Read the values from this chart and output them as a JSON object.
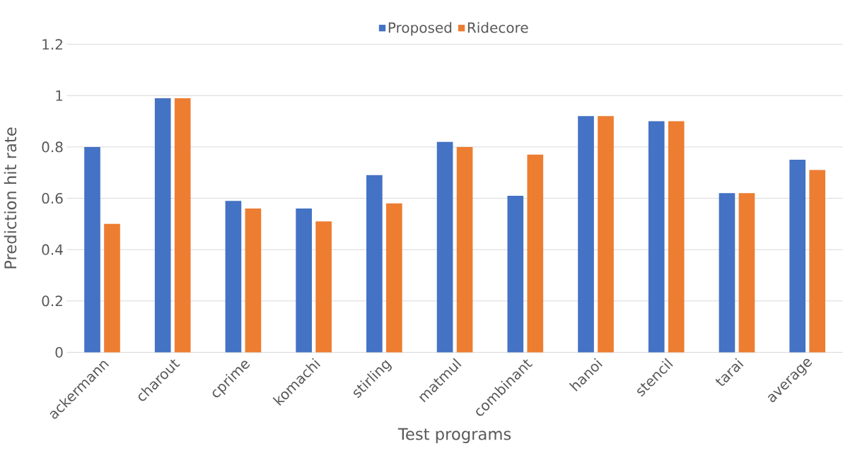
{
  "chart_data": {
    "type": "bar",
    "xlabel": "Test programs",
    "ylabel": "Prediction hit rate",
    "categories": [
      "ackermann",
      "charout",
      "cprime",
      "komachi",
      "stirling",
      "matmul",
      "combinant",
      "hanoi",
      "stencil",
      "tarai",
      "average"
    ],
    "series": [
      {
        "name": "Proposed",
        "color": "#4472c4",
        "values": [
          0.8,
          0.99,
          0.59,
          0.56,
          0.69,
          0.82,
          0.61,
          0.92,
          0.9,
          0.62,
          0.75
        ]
      },
      {
        "name": "Ridecore",
        "color": "#ed7d31",
        "values": [
          0.5,
          0.99,
          0.56,
          0.51,
          0.58,
          0.8,
          0.77,
          0.92,
          0.9,
          0.62,
          0.71
        ]
      }
    ],
    "ylim": [
      0,
      1.2
    ],
    "yticks": [
      0,
      0.2,
      0.4,
      0.6,
      0.8,
      1,
      1.2
    ],
    "grid": "y",
    "legend": "top"
  }
}
